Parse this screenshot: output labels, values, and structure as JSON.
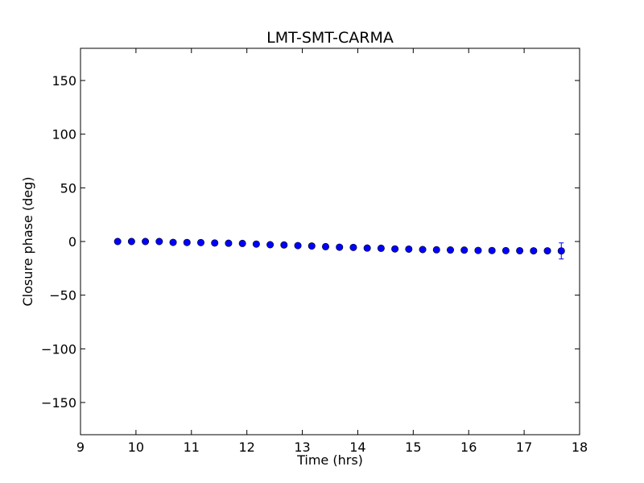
{
  "chart_data": {
    "type": "scatter",
    "title": "LMT-SMT-CARMA",
    "xlabel": "Time (hrs)",
    "ylabel": "Closure phase (deg)",
    "xlim": [
      9,
      18
    ],
    "ylim": [
      -180,
      180
    ],
    "xticks": [
      9,
      10,
      11,
      12,
      13,
      14,
      15,
      16,
      17,
      18
    ],
    "xtick_labels": [
      "9",
      "10",
      "11",
      "12",
      "13",
      "14",
      "15",
      "16",
      "17",
      "18"
    ],
    "yticks": [
      150,
      100,
      50,
      0,
      -50,
      -100,
      -150
    ],
    "ytick_labels": [
      "150",
      "100",
      "50",
      "0",
      "−50",
      "−100",
      "−150"
    ],
    "grid": false,
    "marker_color": "#0000ff",
    "series": [
      {
        "x": [
          9.67,
          9.92,
          10.17,
          10.42,
          10.67,
          10.92,
          11.17,
          11.42,
          11.67,
          11.92,
          12.17,
          12.42,
          12.67,
          12.92,
          13.17,
          13.42,
          13.67,
          13.92,
          14.17,
          14.42,
          14.67,
          14.92,
          15.17,
          15.42,
          15.67,
          15.92,
          16.17,
          16.42,
          16.67,
          16.92,
          17.17,
          17.42,
          17.67
        ],
        "y": [
          0.0,
          0.0,
          0.0,
          0.0,
          -0.8,
          -0.9,
          -1.0,
          -1.4,
          -1.6,
          -1.8,
          -2.4,
          -3.0,
          -3.2,
          -3.8,
          -4.2,
          -4.8,
          -5.3,
          -5.5,
          -6.1,
          -6.3,
          -6.9,
          -7.1,
          -7.5,
          -7.7,
          -7.9,
          -8.0,
          -8.3,
          -8.4,
          -8.5,
          -8.6,
          -8.7,
          -8.7,
          -8.8
        ],
        "yerr": [
          0.4,
          0.4,
          0.4,
          0.4,
          0.4,
          0.4,
          0.4,
          0.4,
          0.4,
          0.4,
          0.4,
          0.4,
          0.4,
          0.4,
          0.4,
          0.4,
          0.4,
          0.4,
          0.4,
          0.4,
          0.4,
          0.4,
          0.4,
          0.4,
          0.4,
          0.4,
          0.4,
          0.4,
          0.4,
          0.4,
          0.4,
          0.4,
          7.5
        ]
      }
    ]
  }
}
